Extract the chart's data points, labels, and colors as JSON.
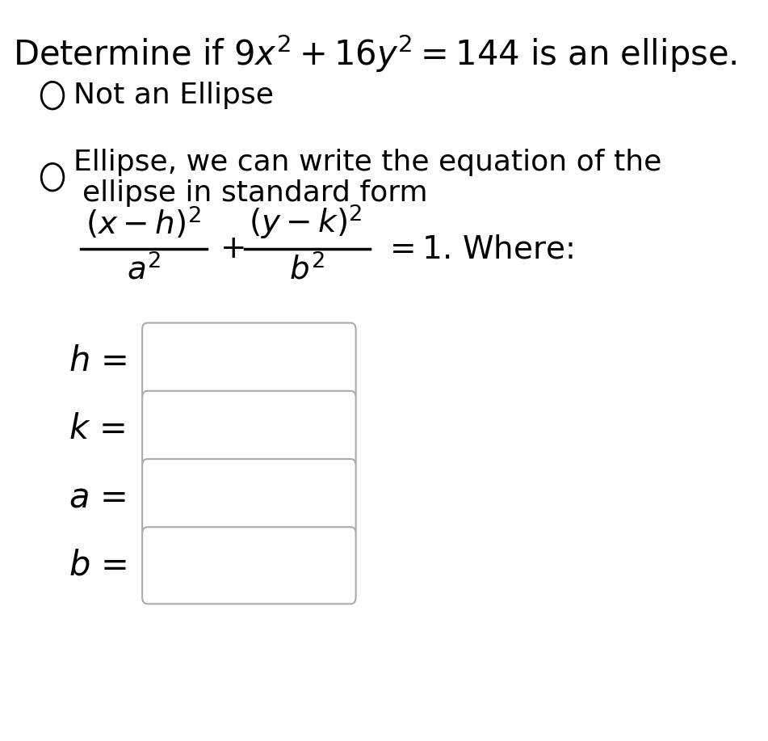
{
  "title_plain": "Determine if ",
  "title_math": "$9x^2 + 16y^2 = 144$",
  "title_end": " is an ellipse.",
  "option1": "Not an Ellipse",
  "option2_line1": "Ellipse, we can write the equation of the",
  "option2_line2": "ellipse in standard form",
  "labels": [
    "h",
    "k",
    "a",
    "b"
  ],
  "bg_color": "#ffffff",
  "text_color": "#000000",
  "box_edge_color": "#aaaaaa",
  "box_fill": "#ffffff",
  "title_fontsize": 30,
  "option_fontsize": 26,
  "formula_fontsize": 28,
  "label_fontsize": 30,
  "fig_width": 9.51,
  "fig_height": 9.17
}
